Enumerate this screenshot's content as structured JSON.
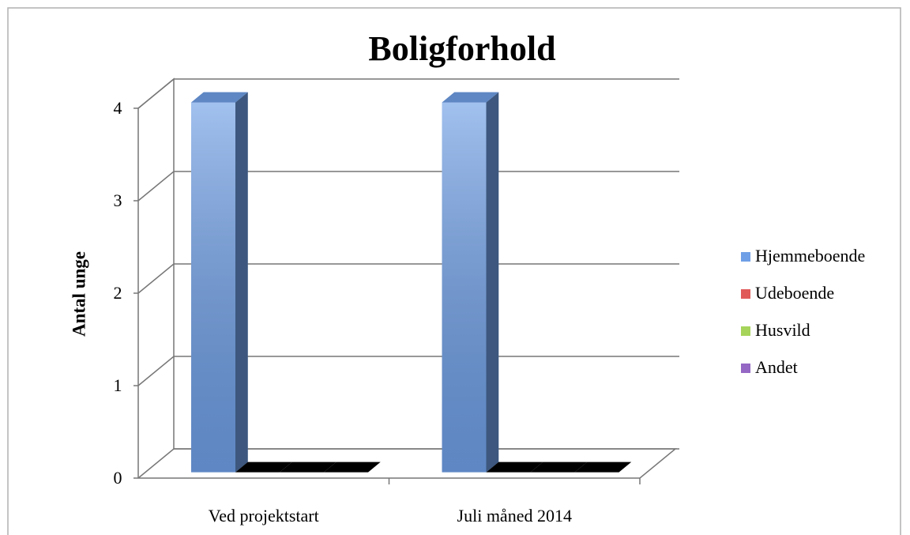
{
  "chart_data": {
    "type": "bar3d",
    "title": "Boligforhold",
    "ylabel": "Antal unge",
    "categories": [
      "Ved projektstart",
      "Juli måned 2014"
    ],
    "series": [
      {
        "name": "Hjemmeboende",
        "color": "#6f9fe6",
        "values": [
          4,
          4
        ]
      },
      {
        "name": "Udeboende",
        "color": "#e05a5a",
        "values": [
          0,
          0
        ]
      },
      {
        "name": "Husvild",
        "color": "#a6d45a",
        "values": [
          0,
          0
        ]
      },
      {
        "name": "Andet",
        "color": "#9468c4",
        "values": [
          0,
          0
        ]
      }
    ],
    "ylim": [
      0,
      4
    ],
    "yticks": [
      0,
      1,
      2,
      3,
      4
    ],
    "grid": true,
    "legend": "right"
  }
}
